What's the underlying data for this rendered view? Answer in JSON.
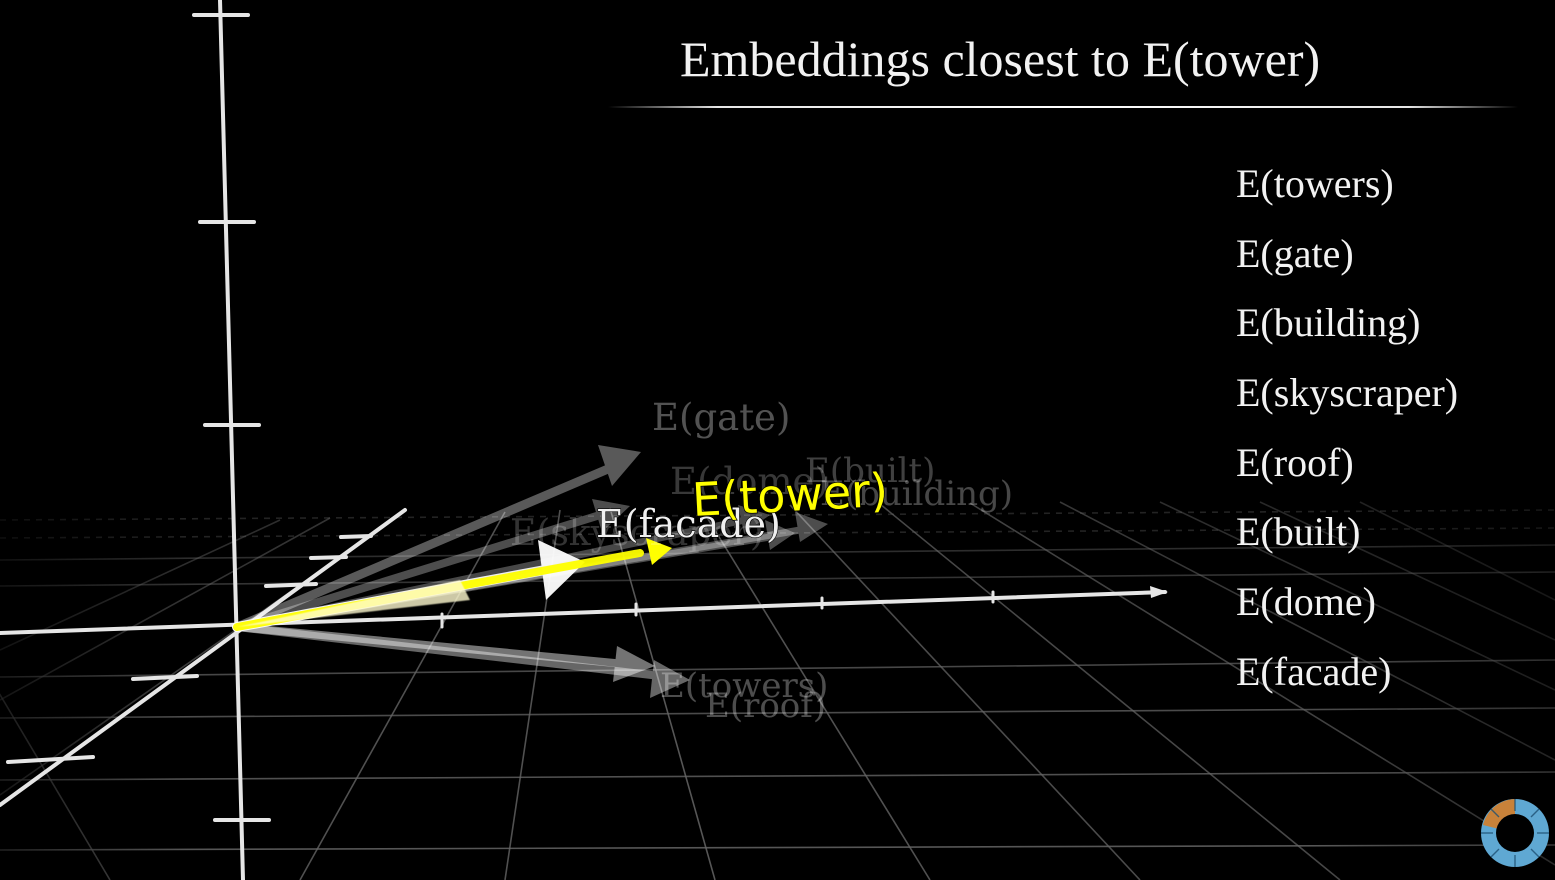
{
  "title": "Embeddings closest to E(tower)",
  "neighbors": [
    "E(towers)",
    "E(gate)",
    "E(building)",
    "E(skyscraper)",
    "E(roof)",
    "E(built)",
    "E(dome)",
    "E(facade)"
  ],
  "scene_labels": {
    "target": "E(tower)",
    "facade": "E(facade)",
    "gate": "E(gate)",
    "dome": "E(dome)",
    "built": "E(built)",
    "building": "E(building)",
    "skyscraper": "E(skyscraper)",
    "towers": "E(towers)",
    "roof": "E(roof)"
  },
  "colors": {
    "background": "#000000",
    "target_vector": "#ffff00",
    "neighbor_vector": "#ffffff",
    "grid": "#6e6e6e",
    "logo_outer": "#5fa8d3",
    "logo_accent": "#c8823a"
  },
  "icons": {
    "logo": "3blue1brown-pi-eye-icon"
  }
}
